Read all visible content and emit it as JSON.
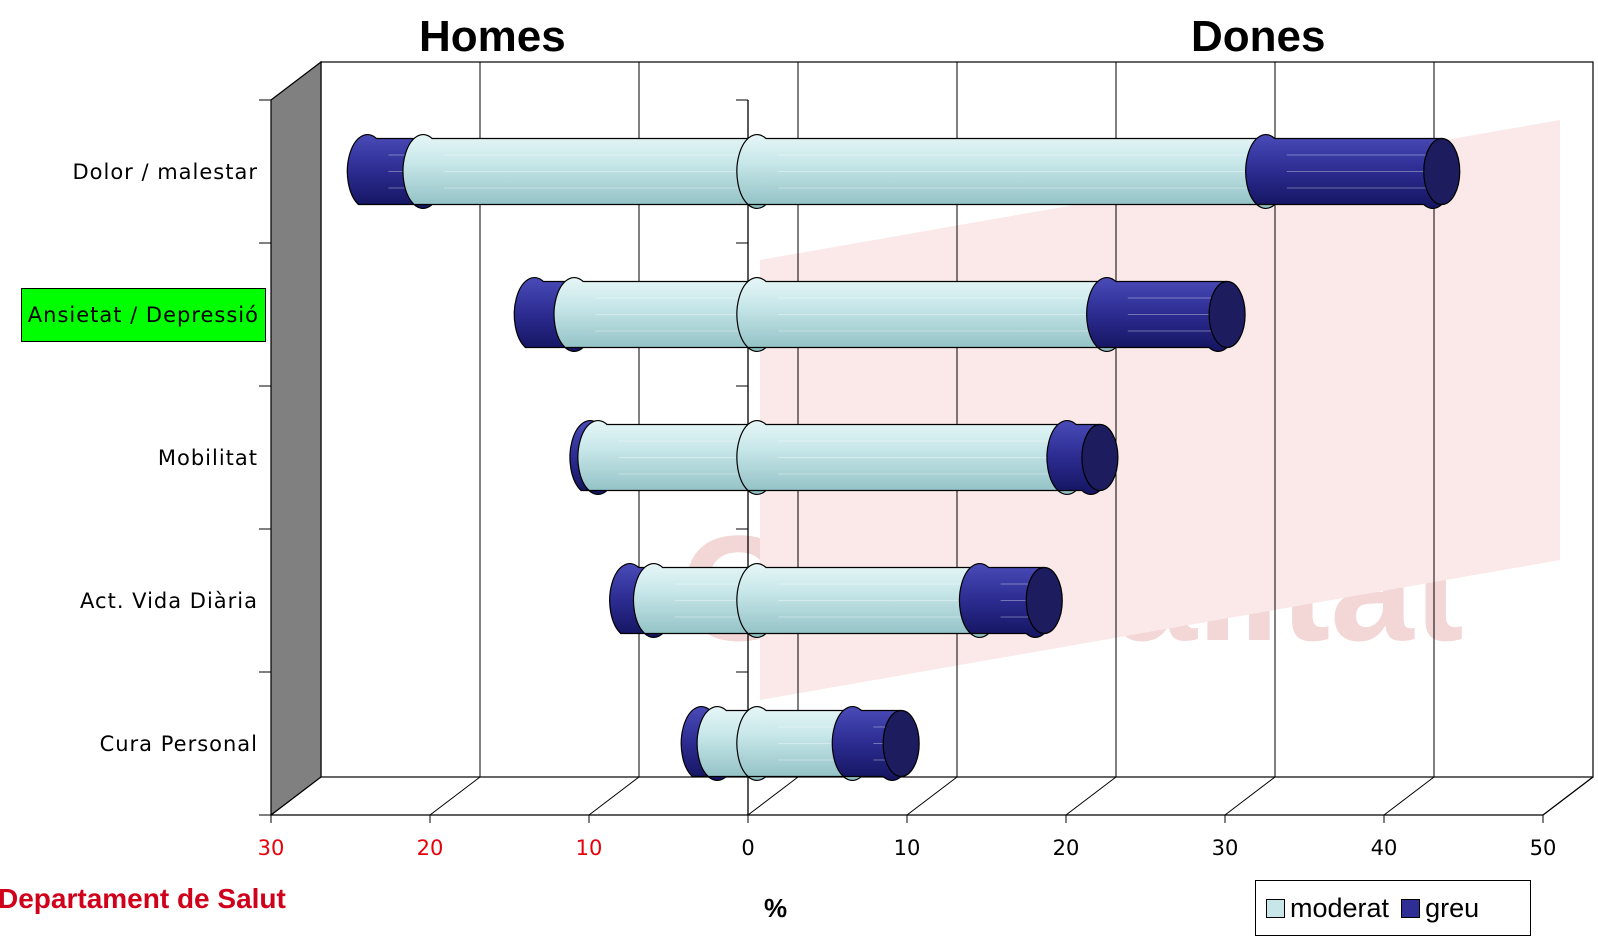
{
  "chart_data": {
    "type": "bar",
    "orientation": "horizontal",
    "stacked": true,
    "three_d": true,
    "groups": [
      "Homes",
      "Dones"
    ],
    "categories": [
      "Dolor / malestar",
      "Ansietat / Depressió",
      "Mobilitat",
      "Act. Vida Diària",
      "Cura Personal"
    ],
    "highlighted_category": "Ansietat / Depressió",
    "series": [
      {
        "name": "moderat",
        "color": "#b7e0e3",
        "homes": [
          21,
          11.5,
          10,
          6.5,
          2.5
        ],
        "dones": [
          32,
          22,
          19.5,
          14,
          6
        ]
      },
      {
        "name": "greu",
        "color": "#2b2b8f",
        "homes": [
          3.5,
          2.5,
          0.5,
          1.5,
          1
        ],
        "dones": [
          10.5,
          7,
          1.5,
          3.5,
          2.5
        ]
      }
    ],
    "x_ticks_left": [
      "30",
      "20",
      "10"
    ],
    "x_ticks_right": [
      "0",
      "10",
      "20",
      "30",
      "40",
      "50"
    ],
    "left_tick_color": "#e8000a",
    "xlabel": "%",
    "xlim_left": [
      0,
      30
    ],
    "xlim_right": [
      0,
      50
    ],
    "grid": true,
    "legend_position": "bottom-right"
  },
  "titles": {
    "left": "Homes",
    "right": "Dones"
  },
  "footer": {
    "organization": "Departament de Salut"
  }
}
